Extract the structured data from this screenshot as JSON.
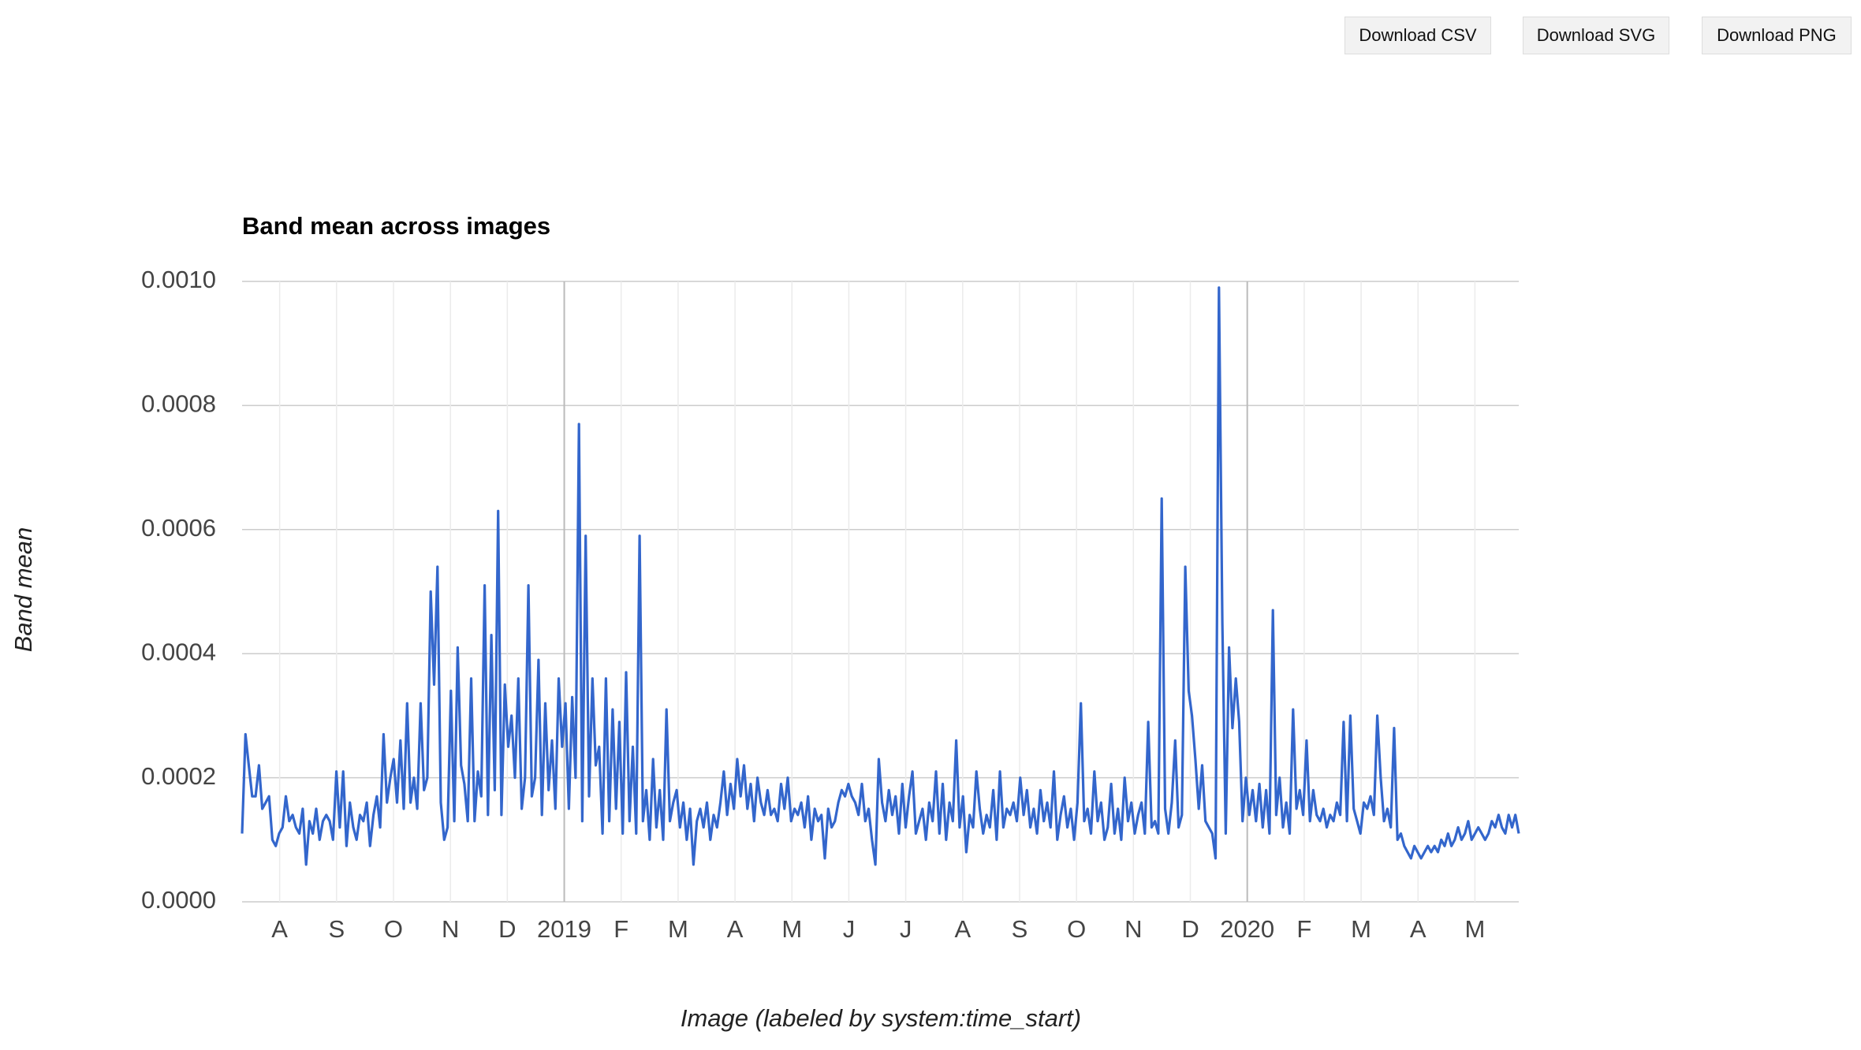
{
  "buttons": [
    "Download CSV",
    "Download SVG",
    "Download PNG"
  ],
  "chart_data": {
    "type": "line",
    "title": "Band mean across images",
    "x_label": "Image (labeled by system:time_start)",
    "y_label": "Band mean",
    "ylim": [
      0,
      0.001
    ],
    "yticks": [
      {
        "value": 0,
        "label": "0.0000"
      },
      {
        "value": 0.0002,
        "label": "0.0002"
      },
      {
        "value": 0.0004,
        "label": "0.0004"
      },
      {
        "value": 0.0006,
        "label": "0.0006"
      },
      {
        "value": 0.0008,
        "label": "0.0008"
      },
      {
        "value": 0.001,
        "label": "0.0010"
      }
    ],
    "xticks": [
      {
        "value": "2018-08",
        "label": "A"
      },
      {
        "value": "2018-09",
        "label": "S"
      },
      {
        "value": "2018-10",
        "label": "O"
      },
      {
        "value": "2018-11",
        "label": "N"
      },
      {
        "value": "2018-12",
        "label": "D"
      },
      {
        "value": "2019-01",
        "label": "2019"
      },
      {
        "value": "2019-02",
        "label": "F"
      },
      {
        "value": "2019-03",
        "label": "M"
      },
      {
        "value": "2019-04",
        "label": "A"
      },
      {
        "value": "2019-05",
        "label": "M"
      },
      {
        "value": "2019-06",
        "label": "J"
      },
      {
        "value": "2019-07",
        "label": "J"
      },
      {
        "value": "2019-08",
        "label": "A"
      },
      {
        "value": "2019-09",
        "label": "S"
      },
      {
        "value": "2019-10",
        "label": "O"
      },
      {
        "value": "2019-11",
        "label": "N"
      },
      {
        "value": "2019-12",
        "label": "D"
      },
      {
        "value": "2020-01",
        "label": "2020"
      },
      {
        "value": "2020-02",
        "label": "F"
      },
      {
        "value": "2020-03",
        "label": "M"
      },
      {
        "value": "2020-04",
        "label": "A"
      },
      {
        "value": "2020-05",
        "label": "M"
      }
    ],
    "grid": true,
    "series": [
      {
        "name": "Band mean",
        "color": "#3366cc",
        "values": [
          0.00011,
          0.00027,
          0.00022,
          0.00017,
          0.00017,
          0.00022,
          0.00015,
          0.00016,
          0.00017,
          0.0001,
          9e-05,
          0.00011,
          0.00012,
          0.00017,
          0.00013,
          0.00014,
          0.00012,
          0.00011,
          0.00015,
          6e-05,
          0.00013,
          0.00011,
          0.00015,
          0.0001,
          0.00013,
          0.00014,
          0.00013,
          0.0001,
          0.00021,
          0.00012,
          0.00021,
          9e-05,
          0.00016,
          0.00012,
          0.0001,
          0.00014,
          0.00013,
          0.00016,
          9e-05,
          0.00014,
          0.00017,
          0.00012,
          0.00027,
          0.00016,
          0.0002,
          0.00023,
          0.00016,
          0.00026,
          0.00015,
          0.00032,
          0.00016,
          0.0002,
          0.00015,
          0.00032,
          0.00018,
          0.0002,
          0.0005,
          0.00035,
          0.00054,
          0.00016,
          0.0001,
          0.00012,
          0.00034,
          0.00013,
          0.00041,
          0.00022,
          0.00019,
          0.00013,
          0.00036,
          0.00013,
          0.00021,
          0.00017,
          0.00051,
          0.00014,
          0.00043,
          0.00018,
          0.00063,
          0.00014,
          0.00035,
          0.00025,
          0.0003,
          0.0002,
          0.00036,
          0.00015,
          0.0002,
          0.00051,
          0.00017,
          0.0002,
          0.00039,
          0.00014,
          0.00032,
          0.00018,
          0.00026,
          0.00015,
          0.00036,
          0.00025,
          0.00032,
          0.00015,
          0.00033,
          0.0002,
          0.00077,
          0.00013,
          0.00059,
          0.00017,
          0.00036,
          0.00022,
          0.00025,
          0.00011,
          0.00036,
          0.00013,
          0.00031,
          0.00015,
          0.00029,
          0.00011,
          0.00037,
          0.00013,
          0.00025,
          0.00011,
          0.00059,
          0.00013,
          0.00018,
          0.0001,
          0.00023,
          0.00012,
          0.00018,
          0.0001,
          0.00031,
          0.00013,
          0.00016,
          0.00018,
          0.00012,
          0.00016,
          0.0001,
          0.00015,
          6e-05,
          0.00013,
          0.00015,
          0.00012,
          0.00016,
          0.0001,
          0.00014,
          0.00012,
          0.00016,
          0.00021,
          0.00014,
          0.00019,
          0.00015,
          0.00023,
          0.00017,
          0.00022,
          0.00015,
          0.00019,
          0.00013,
          0.0002,
          0.00016,
          0.00014,
          0.00018,
          0.00014,
          0.00015,
          0.00013,
          0.00019,
          0.00015,
          0.0002,
          0.00013,
          0.00015,
          0.00014,
          0.00016,
          0.00012,
          0.00017,
          0.0001,
          0.00015,
          0.00013,
          0.00014,
          7e-05,
          0.00015,
          0.00012,
          0.00013,
          0.00016,
          0.00018,
          0.00017,
          0.00019,
          0.00017,
          0.00016,
          0.00014,
          0.00019,
          0.00013,
          0.00015,
          0.0001,
          6e-05,
          0.00023,
          0.00016,
          0.00013,
          0.00018,
          0.00014,
          0.00017,
          0.00011,
          0.00019,
          0.00012,
          0.00017,
          0.00021,
          0.00011,
          0.00013,
          0.00015,
          0.0001,
          0.00016,
          0.00013,
          0.00021,
          0.00011,
          0.00019,
          0.0001,
          0.00016,
          0.00013,
          0.00026,
          0.00012,
          0.00017,
          8e-05,
          0.00014,
          0.00012,
          0.00021,
          0.00015,
          0.00011,
          0.00014,
          0.00012,
          0.00018,
          0.0001,
          0.00021,
          0.00012,
          0.00015,
          0.00014,
          0.00016,
          0.00013,
          0.0002,
          0.00014,
          0.00018,
          0.00012,
          0.00015,
          0.00011,
          0.00018,
          0.00013,
          0.00016,
          0.00012,
          0.00021,
          0.0001,
          0.00014,
          0.00017,
          0.00012,
          0.00015,
          0.0001,
          0.00016,
          0.00032,
          0.00013,
          0.00015,
          0.00011,
          0.00021,
          0.00013,
          0.00016,
          0.0001,
          0.00012,
          0.00019,
          0.00011,
          0.00015,
          0.0001,
          0.0002,
          0.00013,
          0.00016,
          0.00011,
          0.00014,
          0.00016,
          0.00011,
          0.00029,
          0.00012,
          0.00013,
          0.00011,
          0.00065,
          0.00015,
          0.00011,
          0.00016,
          0.00026,
          0.00012,
          0.00014,
          0.00054,
          0.00034,
          0.0003,
          0.00023,
          0.00015,
          0.00022,
          0.00013,
          0.00012,
          0.00011,
          7e-05,
          0.00099,
          0.00045,
          0.00011,
          0.00041,
          0.00028,
          0.00036,
          0.00029,
          0.00013,
          0.0002,
          0.00014,
          0.00018,
          0.00013,
          0.00019,
          0.00012,
          0.00018,
          0.00011,
          0.00047,
          0.00014,
          0.0002,
          0.00012,
          0.00016,
          0.00011,
          0.00031,
          0.00015,
          0.00018,
          0.00014,
          0.00026,
          0.00013,
          0.00018,
          0.00014,
          0.00013,
          0.00015,
          0.00012,
          0.00014,
          0.00013,
          0.00016,
          0.00014,
          0.00029,
          0.00013,
          0.0003,
          0.00015,
          0.00013,
          0.00011,
          0.00016,
          0.00015,
          0.00017,
          0.00014,
          0.0003,
          0.0002,
          0.00013,
          0.00015,
          0.00012,
          0.00028,
          0.0001,
          0.00011,
          9e-05,
          8e-05,
          7e-05,
          9e-05,
          8e-05,
          7e-05,
          8e-05,
          9e-05,
          8e-05,
          9e-05,
          8e-05,
          0.0001,
          9e-05,
          0.00011,
          9e-05,
          0.0001,
          0.00012,
          0.0001,
          0.00011,
          0.00013,
          0.0001,
          0.00011,
          0.00012,
          0.00011,
          0.0001,
          0.00011,
          0.00013,
          0.00012,
          0.00014,
          0.00012,
          0.00011,
          0.00014,
          0.00012,
          0.00014,
          0.00011
        ]
      }
    ]
  }
}
